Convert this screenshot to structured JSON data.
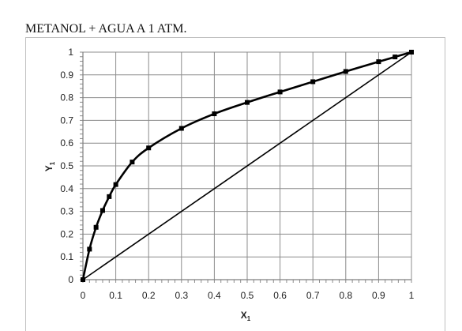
{
  "chart_data": {
    "type": "line",
    "title": "METANOL + AGUA A 1 ATM.",
    "xlabel": "X",
    "xlabel_sub": "1",
    "ylabel": "Y",
    "ylabel_sub": "1",
    "xlim": [
      0,
      1
    ],
    "ylim": [
      0,
      1
    ],
    "xticks": [
      "0",
      "0.1",
      "0.2",
      "0.3",
      "0.4",
      "0.5",
      "0.6",
      "0.7",
      "0.8",
      "0.9",
      "1"
    ],
    "yticks": [
      "0",
      "0.1",
      "0.2",
      "0.3",
      "0.4",
      "0.5",
      "0.6",
      "0.7",
      "0.8",
      "0.9",
      "1"
    ],
    "grid": true,
    "legend": "none",
    "series": [
      {
        "x": [
          0,
          0.02,
          0.04,
          0.06,
          0.08,
          0.1,
          0.15,
          0.2,
          0.3,
          0.4,
          0.5,
          0.6,
          0.7,
          0.8,
          0.9,
          0.95,
          1.0
        ],
        "y": [
          0,
          0.134,
          0.23,
          0.304,
          0.365,
          0.418,
          0.517,
          0.579,
          0.665,
          0.729,
          0.779,
          0.825,
          0.87,
          0.915,
          0.958,
          0.979,
          1.0
        ],
        "markers": true,
        "color": "#000000"
      },
      {
        "x": [
          0,
          1
        ],
        "y": [
          0,
          1
        ],
        "markers": false,
        "color": "#000000"
      }
    ]
  }
}
